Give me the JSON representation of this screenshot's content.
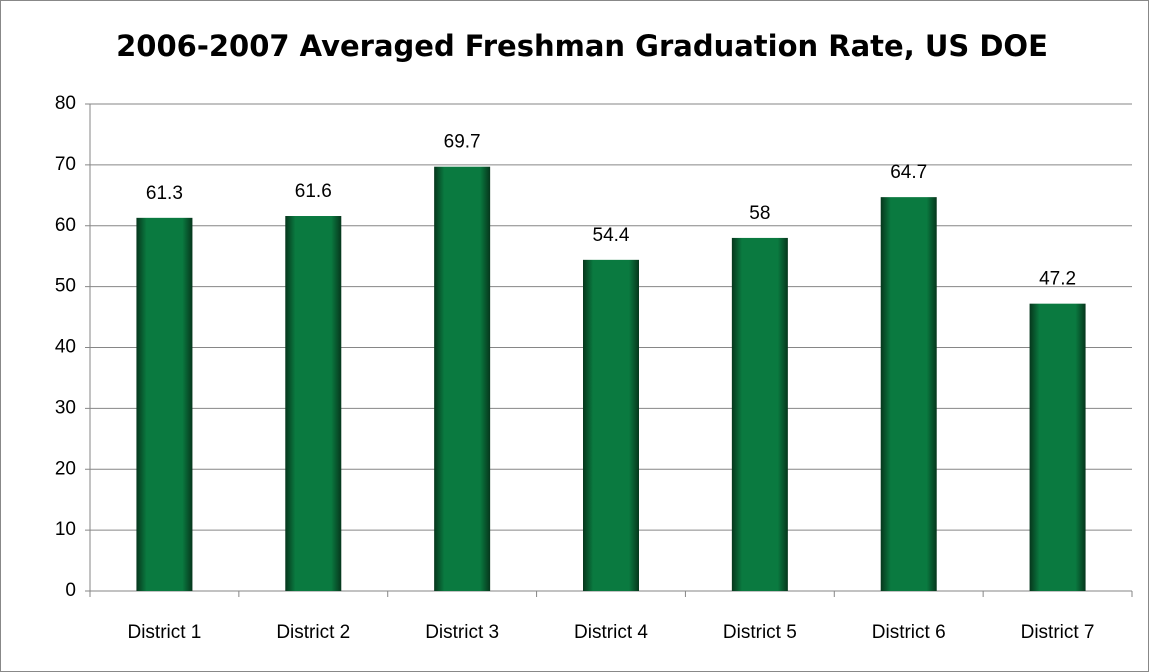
{
  "chart_data": {
    "type": "bar",
    "title": "2006-2007 Averaged Freshman Graduation Rate, US DOE",
    "categories": [
      "District 1",
      "District 2",
      "District 3",
      "District 4",
      "District 5",
      "District 6",
      "District 7"
    ],
    "values": [
      61.3,
      61.6,
      69.7,
      54.4,
      58,
      64.7,
      47.2
    ],
    "color": "#0a7a40",
    "ylim": [
      0,
      80
    ],
    "yticks": [
      0,
      10,
      20,
      30,
      40,
      50,
      60,
      70,
      80
    ],
    "grid": true
  }
}
